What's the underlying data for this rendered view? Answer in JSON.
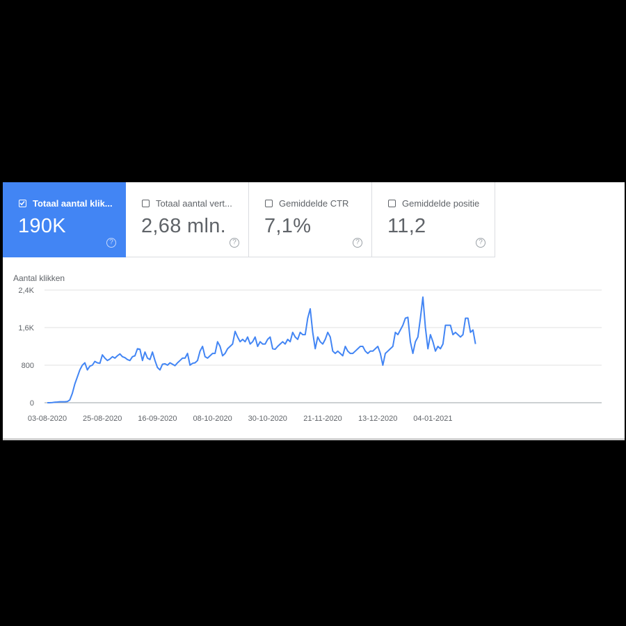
{
  "metrics": [
    {
      "label": "Totaal aantal klik...",
      "value": "190K",
      "checked": true
    },
    {
      "label": "Totaal aantal vert...",
      "value": "2,68 mln.",
      "checked": false
    },
    {
      "label": "Gemiddelde CTR",
      "value": "7,1%",
      "checked": false
    },
    {
      "label": "Gemiddelde positie",
      "value": "11,2",
      "checked": false
    }
  ],
  "help_glyph": "?",
  "colors": {
    "accent": "#4285f4",
    "line": "#4285f4",
    "grid": "#e0e0e0"
  },
  "chart_data": {
    "type": "line",
    "ylabel": "Aantal klikken",
    "ylim": [
      0,
      2400
    ],
    "yticks": [
      0,
      800,
      1600,
      2400
    ],
    "ytick_labels": [
      "0",
      "800",
      "1,6K",
      "2,4K"
    ],
    "xtick_labels": [
      "03-08-2020",
      "25-08-2020",
      "16-09-2020",
      "08-10-2020",
      "30-10-2020",
      "21-11-2020",
      "13-12-2020",
      "04-01-2021"
    ],
    "start_date": "2020-08-03",
    "grid": true,
    "series": [
      {
        "values": [
          0,
          0,
          5,
          10,
          15,
          20,
          20,
          20,
          25,
          60,
          200,
          400,
          550,
          700,
          800,
          850,
          700,
          780,
          800,
          880,
          850,
          840,
          1020,
          950,
          900,
          930,
          980,
          950,
          1000,
          1040,
          980,
          960,
          920,
          900,
          980,
          1000,
          1150,
          1140,
          900,
          1080,
          950,
          920,
          1080,
          900,
          750,
          700,
          820,
          830,
          800,
          850,
          820,
          790,
          850,
          900,
          950,
          950,
          1050,
          800,
          840,
          850,
          900,
          1100,
          1200,
          980,
          950,
          1000,
          1050,
          1050,
          1300,
          1200,
          1000,
          1050,
          1150,
          1200,
          1250,
          1520,
          1400,
          1300,
          1350,
          1300,
          1400,
          1250,
          1300,
          1400,
          1200,
          1300,
          1250,
          1250,
          1350,
          1400,
          1150,
          1140,
          1200,
          1250,
          1300,
          1250,
          1350,
          1300,
          1500,
          1400,
          1350,
          1500,
          1450,
          1450,
          1800,
          2000,
          1500,
          1150,
          1400,
          1300,
          1250,
          1350,
          1500,
          1400,
          1100,
          1050,
          1100,
          1050,
          1000,
          1200,
          1100,
          1050,
          1050,
          1100,
          1150,
          1200,
          1200,
          1100,
          1050,
          1100,
          1100,
          1150,
          1200,
          1050,
          800,
          1050,
          1100,
          1150,
          1200,
          1500,
          1450,
          1550,
          1650,
          1800,
          1820,
          1300,
          1050,
          1300,
          1400,
          1800,
          2250,
          1600,
          1150,
          1450,
          1300,
          1100,
          1200,
          1150,
          1250,
          1650,
          1650,
          1650,
          1450,
          1500,
          1450,
          1400,
          1450,
          1800,
          1800,
          1500,
          1550,
          1250
        ]
      }
    ]
  }
}
